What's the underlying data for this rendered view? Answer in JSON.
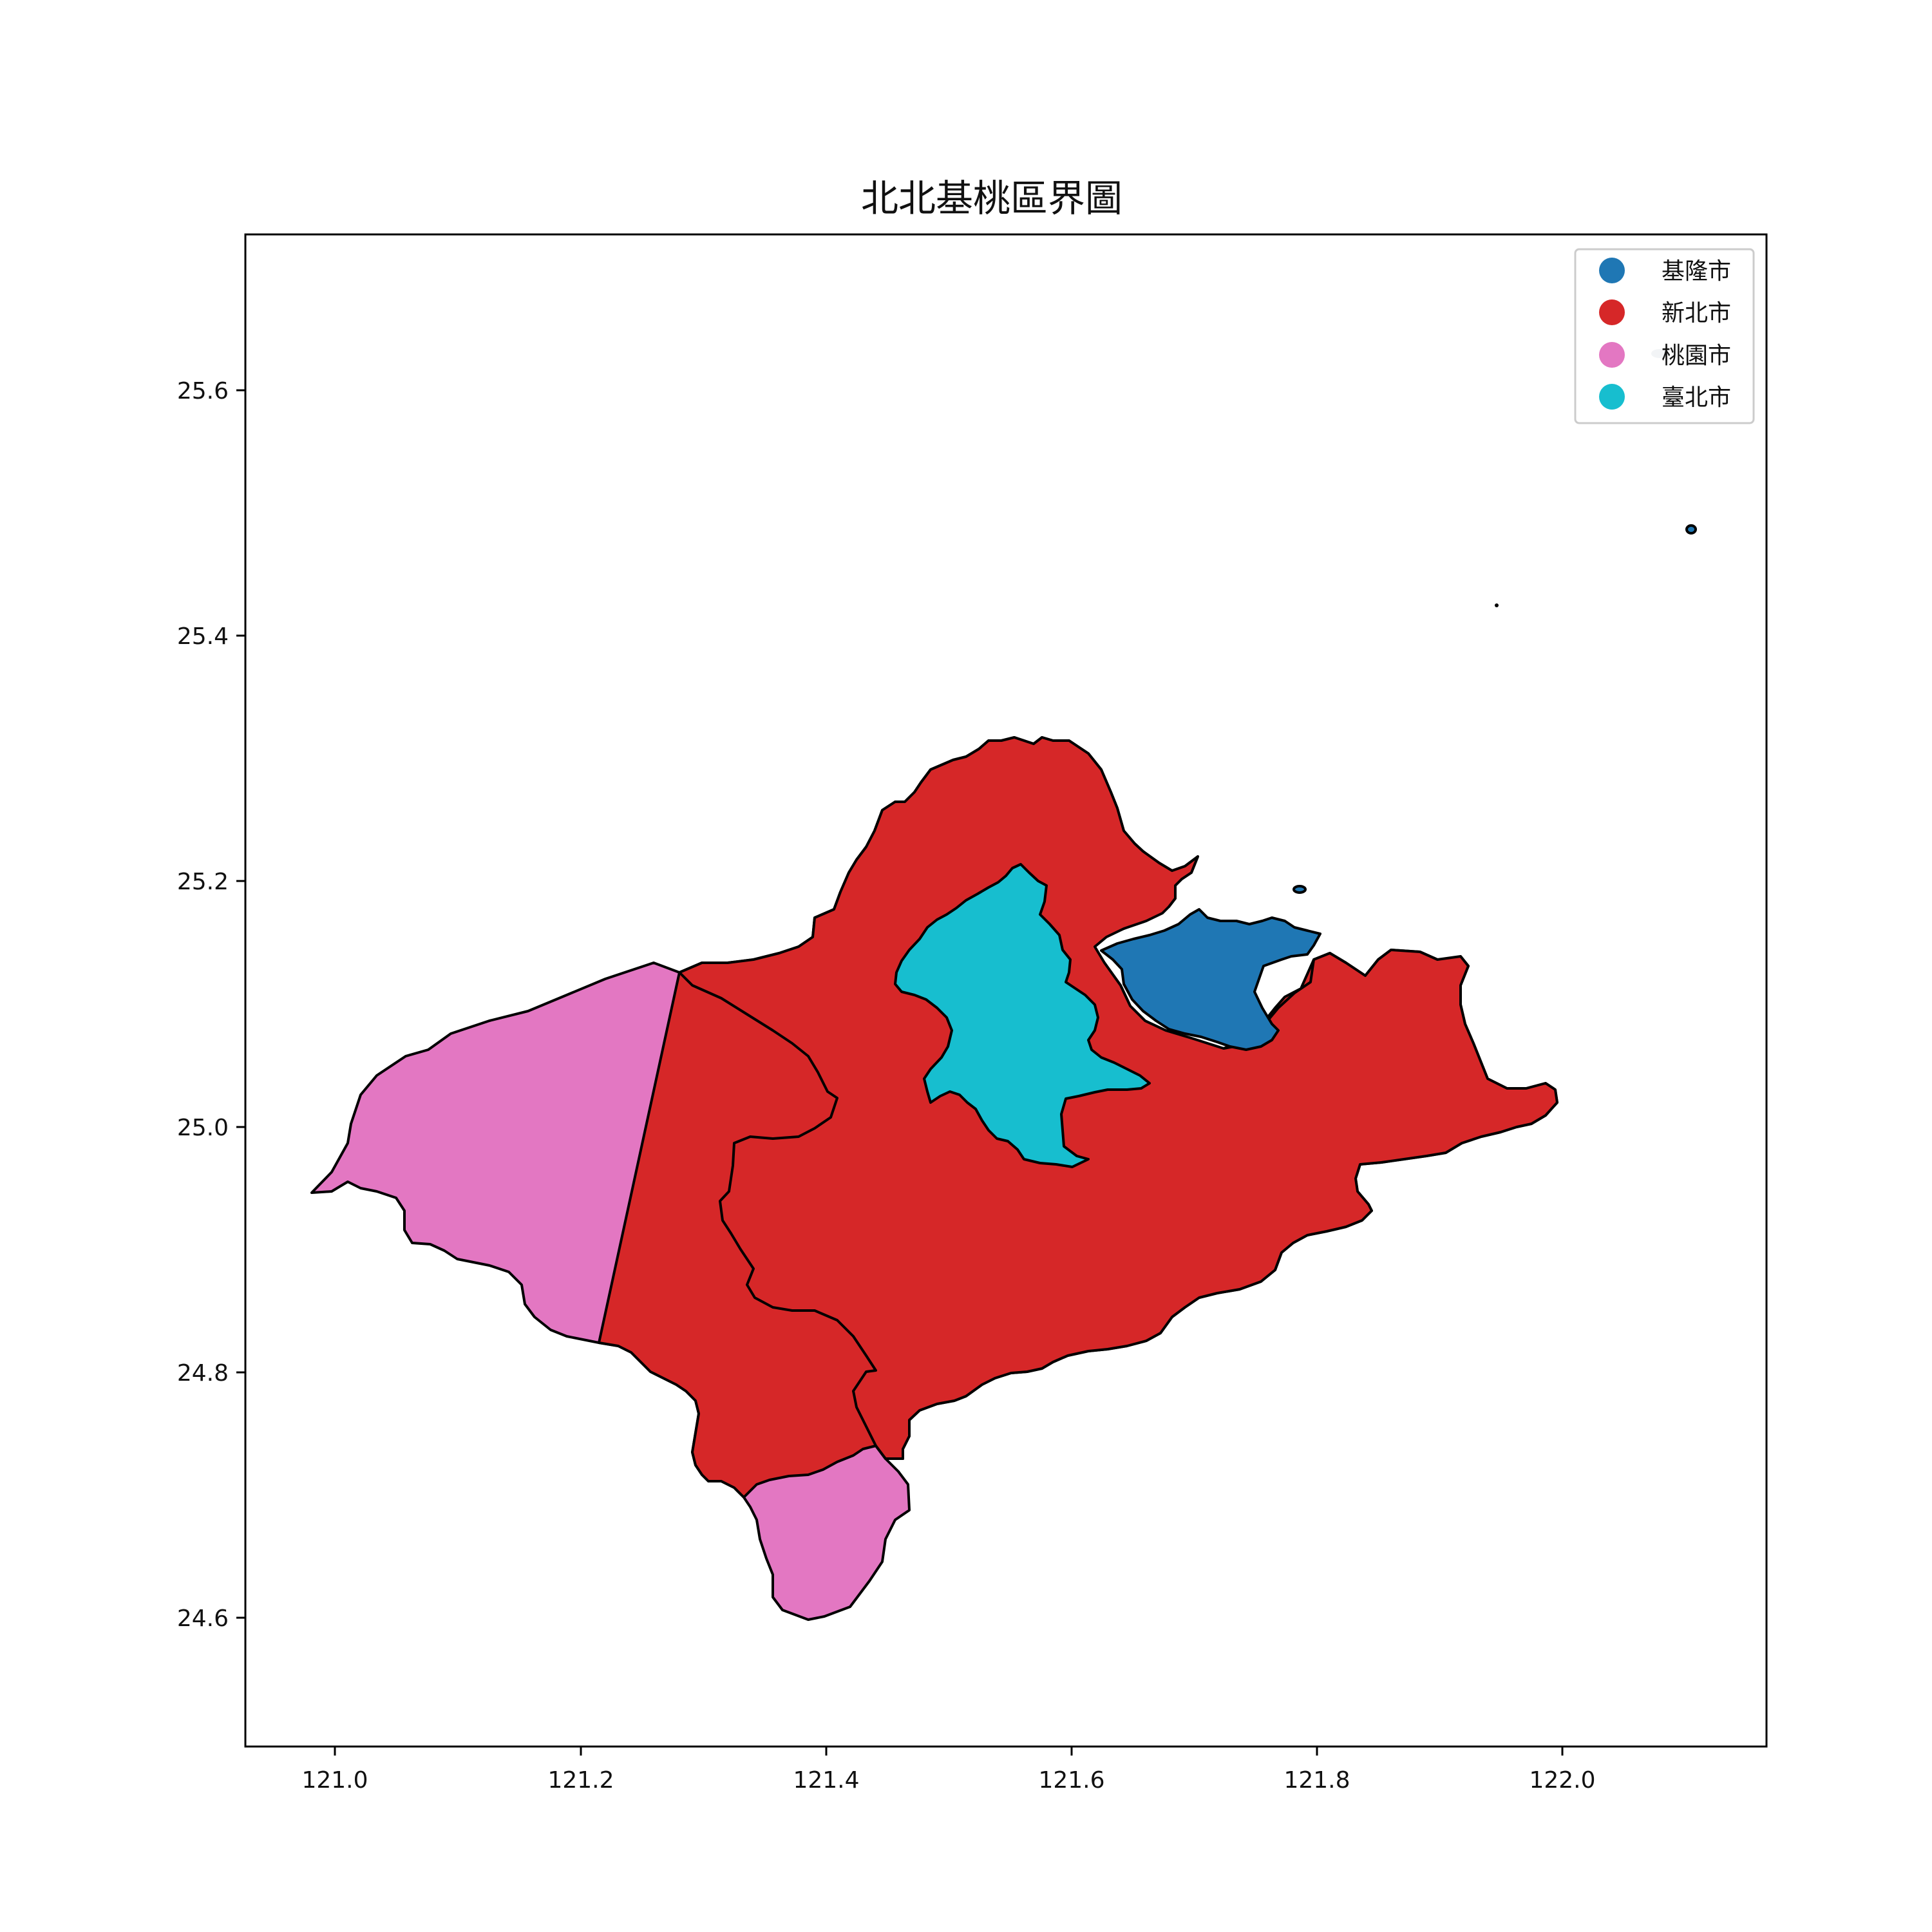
{
  "map": {
    "title": "北北基桃區界圖",
    "x_ticks": [
      "121.0",
      "121.2",
      "121.4",
      "121.6",
      "121.8",
      "122.0"
    ],
    "y_ticks": [
      "25.6",
      "25.4",
      "25.2",
      "25.0",
      "24.8",
      "24.6"
    ],
    "xlim": [
      120.93,
      122.17
    ],
    "ylim": [
      24.48,
      25.73
    ],
    "legend_position": "top-right",
    "regions": [
      {
        "name": "基隆市",
        "color": "#1f77b4"
      },
      {
        "name": "新北市",
        "color": "#d62728"
      },
      {
        "name": "桃園市",
        "color": "#e377c2"
      },
      {
        "name": "臺北市",
        "color": "#17becf"
      }
    ]
  }
}
